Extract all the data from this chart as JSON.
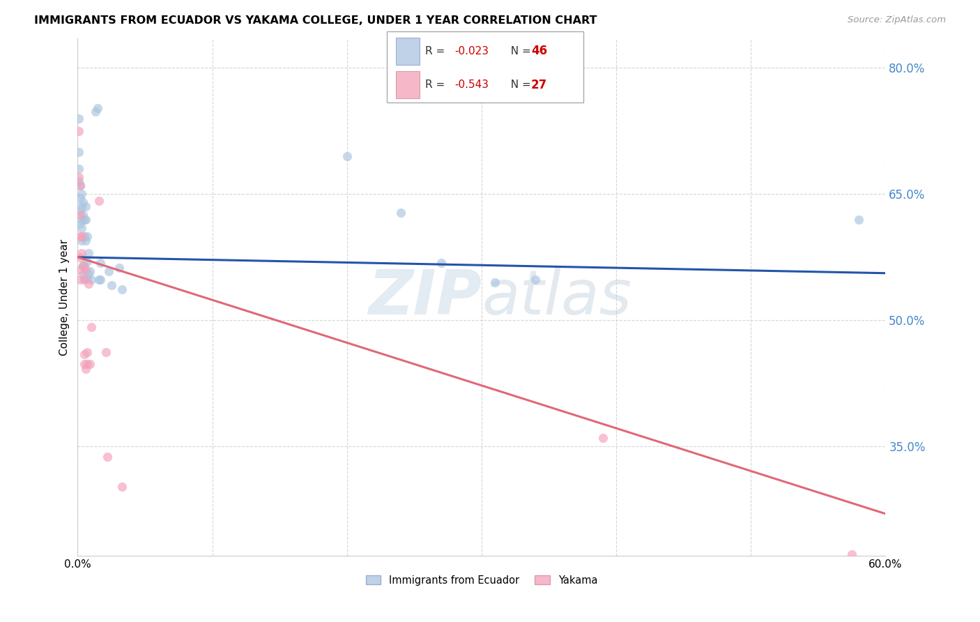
{
  "title": "IMMIGRANTS FROM ECUADOR VS YAKAMA COLLEGE, UNDER 1 YEAR CORRELATION CHART",
  "source": "Source: ZipAtlas.com",
  "ylabel": "College, Under 1 year",
  "xmin": 0.0,
  "xmax": 0.6,
  "ymin": 0.22,
  "ymax": 0.835,
  "yticks": [
    0.35,
    0.5,
    0.65,
    0.8
  ],
  "ytick_labels": [
    "35.0%",
    "50.0%",
    "65.0%",
    "80.0%"
  ],
  "blue_color": "#aac4e0",
  "pink_color": "#f4a0b8",
  "blue_line_color": "#2255aa",
  "pink_line_color": "#e06878",
  "watermark_zip": "ZIP",
  "watermark_atlas": "atlas",
  "blue_scatter": [
    [
      0.001,
      0.74
    ],
    [
      0.001,
      0.7
    ],
    [
      0.001,
      0.68
    ],
    [
      0.001,
      0.665
    ],
    [
      0.002,
      0.66
    ],
    [
      0.002,
      0.645
    ],
    [
      0.002,
      0.63
    ],
    [
      0.002,
      0.615
    ],
    [
      0.003,
      0.65
    ],
    [
      0.003,
      0.635
    ],
    [
      0.003,
      0.62
    ],
    [
      0.003,
      0.61
    ],
    [
      0.003,
      0.595
    ],
    [
      0.004,
      0.64
    ],
    [
      0.004,
      0.625
    ],
    [
      0.004,
      0.565
    ],
    [
      0.004,
      0.555
    ],
    [
      0.005,
      0.62
    ],
    [
      0.005,
      0.6
    ],
    [
      0.005,
      0.565
    ],
    [
      0.005,
      0.55
    ],
    [
      0.006,
      0.635
    ],
    [
      0.006,
      0.62
    ],
    [
      0.006,
      0.595
    ],
    [
      0.007,
      0.6
    ],
    [
      0.007,
      0.57
    ],
    [
      0.007,
      0.55
    ],
    [
      0.008,
      0.58
    ],
    [
      0.008,
      0.555
    ],
    [
      0.009,
      0.558
    ],
    [
      0.01,
      0.548
    ],
    [
      0.013,
      0.748
    ],
    [
      0.015,
      0.752
    ],
    [
      0.016,
      0.548
    ],
    [
      0.017,
      0.568
    ],
    [
      0.017,
      0.548
    ],
    [
      0.023,
      0.558
    ],
    [
      0.025,
      0.542
    ],
    [
      0.031,
      0.562
    ],
    [
      0.033,
      0.537
    ],
    [
      0.2,
      0.695
    ],
    [
      0.24,
      0.628
    ],
    [
      0.27,
      0.568
    ],
    [
      0.31,
      0.545
    ],
    [
      0.34,
      0.548
    ],
    [
      0.58,
      0.62
    ]
  ],
  "pink_scatter": [
    [
      0.001,
      0.725
    ],
    [
      0.001,
      0.67
    ],
    [
      0.002,
      0.66
    ],
    [
      0.002,
      0.625
    ],
    [
      0.002,
      0.6
    ],
    [
      0.002,
      0.575
    ],
    [
      0.002,
      0.56
    ],
    [
      0.002,
      0.548
    ],
    [
      0.003,
      0.6
    ],
    [
      0.003,
      0.58
    ],
    [
      0.004,
      0.565
    ],
    [
      0.005,
      0.548
    ],
    [
      0.005,
      0.46
    ],
    [
      0.005,
      0.448
    ],
    [
      0.006,
      0.442
    ],
    [
      0.006,
      0.56
    ],
    [
      0.007,
      0.462
    ],
    [
      0.007,
      0.448
    ],
    [
      0.008,
      0.543
    ],
    [
      0.009,
      0.448
    ],
    [
      0.01,
      0.492
    ],
    [
      0.016,
      0.642
    ],
    [
      0.021,
      0.462
    ],
    [
      0.022,
      0.338
    ],
    [
      0.033,
      0.302
    ],
    [
      0.39,
      0.36
    ],
    [
      0.575,
      0.222
    ]
  ],
  "blue_line_x": [
    0.0,
    0.6
  ],
  "blue_line_y": [
    0.575,
    0.556
  ],
  "pink_line_x": [
    0.0,
    0.6
  ],
  "pink_line_y": [
    0.575,
    0.27
  ],
  "blue_scatter_size": 90,
  "pink_scatter_size": 90,
  "legend_r_blue": "-0.023",
  "legend_n_blue": "46",
  "legend_r_pink": "-0.543",
  "legend_n_pink": "27"
}
